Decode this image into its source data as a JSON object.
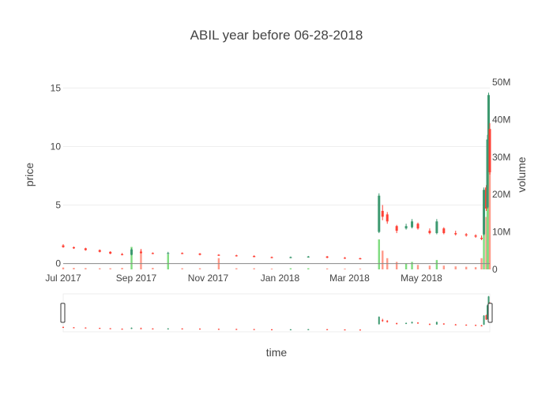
{
  "chart_data": {
    "type": "candlestick",
    "title": "ABIL year before 06-28-2018",
    "xlabel": "time",
    "ylabel": "price",
    "y2label": "volume",
    "xlim": [
      "2017-07-01",
      "2018-06-28"
    ],
    "ylim": [
      -0.5,
      15.5
    ],
    "y2lim": [
      0,
      50000000
    ],
    "xticks": [
      {
        "date": "2017-07-01",
        "label": "Jul 2017"
      },
      {
        "date": "2017-09-01",
        "label": "Sep 2017"
      },
      {
        "date": "2017-11-01",
        "label": "Nov 2017"
      },
      {
        "date": "2018-01-01",
        "label": "Jan 2018"
      },
      {
        "date": "2018-03-01",
        "label": "Mar 2018"
      },
      {
        "date": "2018-05-01",
        "label": "May 2018"
      }
    ],
    "yticks": [
      {
        "value": 0,
        "label": "0"
      },
      {
        "value": 5,
        "label": "5"
      },
      {
        "value": 10,
        "label": "10"
      },
      {
        "value": 15,
        "label": "15"
      }
    ],
    "y2ticks": [
      {
        "value": 0,
        "label": "0"
      },
      {
        "value": 10000000,
        "label": "10M"
      },
      {
        "value": 20000000,
        "label": "20M"
      },
      {
        "value": 30000000,
        "label": "30M"
      },
      {
        "value": 40000000,
        "label": "40M"
      },
      {
        "value": 50000000,
        "label": "50M"
      }
    ],
    "grid": true,
    "rangeslider": true,
    "colors": {
      "increasing": "#3d9970",
      "decreasing": "#ff4136",
      "volume_up": "#7fdc7f",
      "volume_down": "#ff9a8a"
    },
    "candles": [
      {
        "date": "2017-07-01",
        "open": 1.55,
        "high": 1.65,
        "low": 1.35,
        "close": 1.4,
        "volume": 500000
      },
      {
        "date": "2017-07-10",
        "open": 1.4,
        "high": 1.45,
        "low": 1.25,
        "close": 1.3,
        "volume": 400000
      },
      {
        "date": "2017-07-20",
        "open": 1.3,
        "high": 1.35,
        "low": 1.1,
        "close": 1.15,
        "volume": 350000
      },
      {
        "date": "2017-08-01",
        "open": 1.15,
        "high": 1.2,
        "low": 0.95,
        "close": 1.0,
        "volume": 300000
      },
      {
        "date": "2017-08-10",
        "open": 1.0,
        "high": 1.05,
        "low": 0.8,
        "close": 0.85,
        "volume": 300000
      },
      {
        "date": "2017-08-20",
        "open": 0.8,
        "high": 0.9,
        "low": 0.7,
        "close": 0.75,
        "volume": 400000
      },
      {
        "date": "2017-08-28",
        "open": 0.75,
        "high": 1.3,
        "low": 0.7,
        "close": 1.2,
        "volume": 6000000
      },
      {
        "date": "2017-09-05",
        "open": 1.0,
        "high": 1.25,
        "low": 0.85,
        "close": 0.9,
        "volume": 5000000
      },
      {
        "date": "2017-09-15",
        "open": 0.9,
        "high": 0.95,
        "low": 0.8,
        "close": 0.85,
        "volume": 400000
      },
      {
        "date": "2017-09-28",
        "open": 0.85,
        "high": 1.0,
        "low": 0.8,
        "close": 0.9,
        "volume": 4000000
      },
      {
        "date": "2017-10-10",
        "open": 0.9,
        "high": 0.95,
        "low": 0.8,
        "close": 0.85,
        "volume": 300000
      },
      {
        "date": "2017-10-25",
        "open": 0.85,
        "high": 0.9,
        "low": 0.7,
        "close": 0.75,
        "volume": 300000
      },
      {
        "date": "2017-11-10",
        "open": 0.75,
        "high": 0.8,
        "low": 0.65,
        "close": 0.7,
        "volume": 3000000
      },
      {
        "date": "2017-11-25",
        "open": 0.7,
        "high": 0.75,
        "low": 0.6,
        "close": 0.65,
        "volume": 300000
      },
      {
        "date": "2017-12-10",
        "open": 0.65,
        "high": 0.7,
        "low": 0.55,
        "close": 0.55,
        "volume": 300000
      },
      {
        "date": "2017-12-25",
        "open": 0.55,
        "high": 0.6,
        "low": 0.45,
        "close": 0.5,
        "volume": 200000
      },
      {
        "date": "2018-01-10",
        "open": 0.5,
        "high": 0.6,
        "low": 0.45,
        "close": 0.55,
        "volume": 300000
      },
      {
        "date": "2018-01-25",
        "open": 0.55,
        "high": 0.65,
        "low": 0.5,
        "close": 0.6,
        "volume": 300000
      },
      {
        "date": "2018-02-10",
        "open": 0.6,
        "high": 0.65,
        "low": 0.45,
        "close": 0.5,
        "volume": 250000
      },
      {
        "date": "2018-02-25",
        "open": 0.5,
        "high": 0.55,
        "low": 0.4,
        "close": 0.45,
        "volume": 200000
      },
      {
        "date": "2018-03-10",
        "open": 0.45,
        "high": 0.5,
        "low": 0.35,
        "close": 0.4,
        "volume": 200000
      },
      {
        "date": "2018-03-26",
        "open": 2.7,
        "high": 6.0,
        "low": 2.6,
        "close": 5.8,
        "volume": 8000000
      },
      {
        "date": "2018-03-29",
        "open": 4.5,
        "high": 5.0,
        "low": 3.7,
        "close": 4.0,
        "volume": 5000000
      },
      {
        "date": "2018-04-02",
        "open": 4.2,
        "high": 4.4,
        "low": 3.4,
        "close": 3.6,
        "volume": 3000000
      },
      {
        "date": "2018-04-10",
        "open": 3.2,
        "high": 3.3,
        "low": 2.6,
        "close": 2.8,
        "volume": 2000000
      },
      {
        "date": "2018-04-18",
        "open": 3.0,
        "high": 3.4,
        "low": 2.9,
        "close": 3.2,
        "volume": 1500000
      },
      {
        "date": "2018-04-23",
        "open": 3.1,
        "high": 3.8,
        "low": 3.0,
        "close": 3.6,
        "volume": 2000000
      },
      {
        "date": "2018-04-28",
        "open": 3.4,
        "high": 3.5,
        "low": 2.9,
        "close": 3.0,
        "volume": 1200000
      },
      {
        "date": "2018-05-08",
        "open": 2.8,
        "high": 3.0,
        "low": 2.5,
        "close": 2.6,
        "volume": 1000000
      },
      {
        "date": "2018-05-14",
        "open": 2.6,
        "high": 3.8,
        "low": 2.5,
        "close": 3.6,
        "volume": 2500000
      },
      {
        "date": "2018-05-20",
        "open": 3.0,
        "high": 3.1,
        "low": 2.5,
        "close": 2.6,
        "volume": 1000000
      },
      {
        "date": "2018-05-30",
        "open": 2.6,
        "high": 2.8,
        "low": 2.4,
        "close": 2.5,
        "volume": 800000
      },
      {
        "date": "2018-06-08",
        "open": 2.5,
        "high": 2.6,
        "low": 2.3,
        "close": 2.4,
        "volume": 700000
      },
      {
        "date": "2018-06-16",
        "open": 2.4,
        "high": 2.5,
        "low": 2.2,
        "close": 2.3,
        "volume": 600000
      },
      {
        "date": "2018-06-21",
        "open": 2.2,
        "high": 2.4,
        "low": 2.0,
        "close": 2.1,
        "volume": 3000000
      },
      {
        "date": "2018-06-23",
        "open": 2.5,
        "high": 6.5,
        "low": 2.4,
        "close": 6.3,
        "volume": 10000000
      },
      {
        "date": "2018-06-25",
        "open": 6.5,
        "high": 6.7,
        "low": 4.5,
        "close": 4.7,
        "volume": 14000000
      },
      {
        "date": "2018-06-26",
        "open": 4.8,
        "high": 11.0,
        "low": 4.7,
        "close": 10.6,
        "volume": 30000000
      },
      {
        "date": "2018-06-27",
        "open": 10.5,
        "high": 14.6,
        "low": 9.5,
        "close": 14.4,
        "volume": 42000000
      },
      {
        "date": "2018-06-28",
        "open": 11.5,
        "high": 12.0,
        "low": 7.6,
        "close": 7.8,
        "volume": 35000000
      }
    ]
  }
}
